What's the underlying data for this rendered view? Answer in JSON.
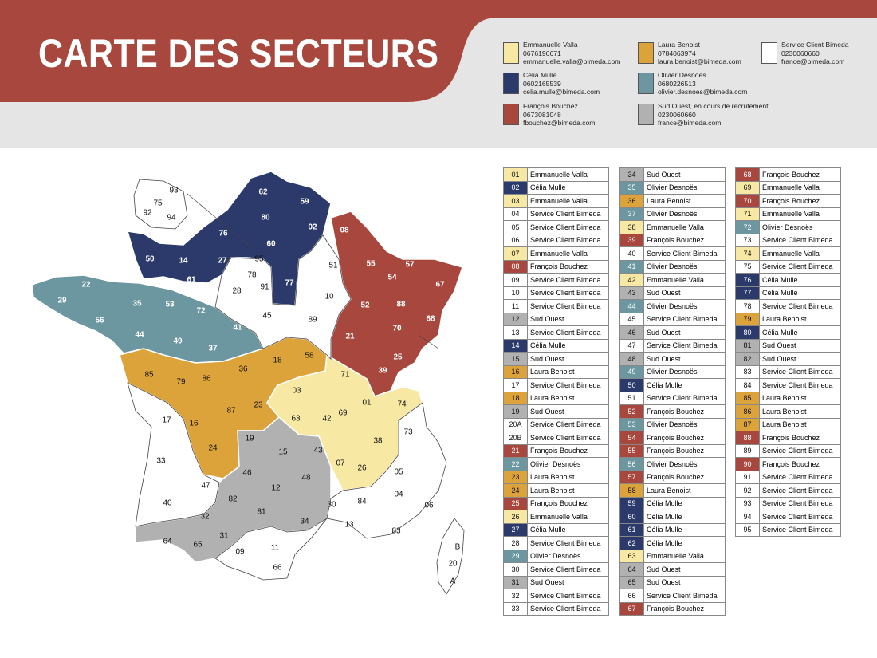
{
  "title": "CARTE DES SECTEURS",
  "colors": {
    "banner": "#a8473d",
    "header_bg": "#e5e5e5",
    "Emmanuelle Valla": "#f7e8a4",
    "Célia Mulle": "#2b3a6a",
    "François Bouchez": "#a8473d",
    "Laura Benoist": "#dca33b",
    "Olivier Desnoës": "#6c97a0",
    "Sud Ouest": "#b1b1b1",
    "Service Client Bimeda": "#ffffff"
  },
  "legend": [
    {
      "key": "Emmanuelle Valla",
      "lines": [
        "Emmanuelle Valla",
        "0676196671",
        "emmanuelle.valla@bimeda.com"
      ]
    },
    {
      "key": "Célia Mulle",
      "lines": [
        "Célia Mulle",
        "0602165539",
        "celia.mulle@bimeda.com"
      ]
    },
    {
      "key": "François Bouchez",
      "lines": [
        "François Bouchez",
        "067308104​8",
        "fbouchez@bimeda.com"
      ]
    },
    {
      "key": "Laura Benoist",
      "lines": [
        "Laura Benoist",
        "0784063974",
        "laura.benoist@bimeda.com"
      ]
    },
    {
      "key": "Olivier Desnoës",
      "lines": [
        "Olivier Desnoës",
        "0680226513",
        "olivier.desnoes@bimeda.com"
      ]
    },
    {
      "key": "Sud Ouest",
      "lines": [
        "Sud Ouest, en cours de recrutement",
        "0230060660",
        "france@bimeda.com"
      ]
    },
    {
      "key": "Service Client Bimeda",
      "lines": [
        "Service Client Bimeda",
        "0230060660",
        "france@bimeda.com"
      ]
    }
  ],
  "departments": [
    [
      "01",
      "Emmanuelle Valla"
    ],
    [
      "02",
      "Célia Mulle"
    ],
    [
      "03",
      "Emmanuelle Valla"
    ],
    [
      "04",
      "Service Client Bimeda"
    ],
    [
      "05",
      "Service Client Bimeda"
    ],
    [
      "06",
      "Service Client Bimeda"
    ],
    [
      "07",
      "Emmanuelle Valla"
    ],
    [
      "08",
      "François Bouchez"
    ],
    [
      "09",
      "Service Client Bimeda"
    ],
    [
      "10",
      "Service Client Bimeda"
    ],
    [
      "11",
      "Service Client Bimeda"
    ],
    [
      "12",
      "Sud Ouest"
    ],
    [
      "13",
      "Service Client Bimeda"
    ],
    [
      "14",
      "Célia Mulle"
    ],
    [
      "15",
      "Sud Ouest"
    ],
    [
      "16",
      "Laura Benoist"
    ],
    [
      "17",
      "Service Client Bimeda"
    ],
    [
      "18",
      "Laura Benoist"
    ],
    [
      "19",
      "Sud Ouest"
    ],
    [
      "20A",
      "Service Client Bimeda"
    ],
    [
      "20B",
      "Service Client Bimeda"
    ],
    [
      "21",
      "François Bouchez"
    ],
    [
      "22",
      "Olivier Desnoës"
    ],
    [
      "23",
      "Laura Benoist"
    ],
    [
      "24",
      "Laura Benoist"
    ],
    [
      "25",
      "François Bouchez"
    ],
    [
      "26",
      "Emmanuelle Valla"
    ],
    [
      "27",
      "Célia Mulle"
    ],
    [
      "28",
      "Service Client Bimeda"
    ],
    [
      "29",
      "Olivier Desnoës"
    ],
    [
      "30",
      "Service Client Bimeda"
    ],
    [
      "31",
      "Sud Ouest"
    ],
    [
      "32",
      "Service Client Bimeda"
    ],
    [
      "33",
      "Service Client Bimeda"
    ],
    [
      "34",
      "Sud Ouest"
    ],
    [
      "35",
      "Olivier Desnoës"
    ],
    [
      "36",
      "Laura Benoist"
    ],
    [
      "37",
      "Olivier Desnoës"
    ],
    [
      "38",
      "Emmanuelle Valla"
    ],
    [
      "39",
      "François Bouchez"
    ],
    [
      "40",
      "Service Client Bimeda"
    ],
    [
      "41",
      "Olivier Desnoës"
    ],
    [
      "42",
      "Emmanuelle Valla"
    ],
    [
      "43",
      "Sud Ouest"
    ],
    [
      "44",
      "Olivier Desnoës"
    ],
    [
      "45",
      "Service Client Bimeda"
    ],
    [
      "46",
      "Sud Ouest"
    ],
    [
      "47",
      "Service Client Bimeda"
    ],
    [
      "48",
      "Sud Ouest"
    ],
    [
      "49",
      "Olivier Desnoës"
    ],
    [
      "50",
      "Célia Mulle"
    ],
    [
      "51",
      "Service Client Bimeda"
    ],
    [
      "52",
      "François Bouchez"
    ],
    [
      "53",
      "Olivier Desnoës"
    ],
    [
      "54",
      "François Bouchez"
    ],
    [
      "55",
      "François Bouchez"
    ],
    [
      "56",
      "Olivier Desnoës"
    ],
    [
      "57",
      "François Bouchez"
    ],
    [
      "58",
      "Laura Benoist"
    ],
    [
      "59",
      "Célia Mulle"
    ],
    [
      "60",
      "Célia Mulle"
    ],
    [
      "61",
      "Célia Mulle"
    ],
    [
      "62",
      "Célia Mulle"
    ],
    [
      "63",
      "Emmanuelle Valla"
    ],
    [
      "64",
      "Sud Ouest"
    ],
    [
      "65",
      "Sud Ouest"
    ],
    [
      "66",
      "Service Client Bimeda"
    ],
    [
      "67",
      "François Bouchez"
    ],
    [
      "68",
      "François Bouchez"
    ],
    [
      "69",
      "Emmanuelle Valla"
    ],
    [
      "70",
      "François Bouchez"
    ],
    [
      "71",
      "Emmanuelle Valla"
    ],
    [
      "72",
      "Olivier Desnoës"
    ],
    [
      "73",
      "Service Client Bimeda"
    ],
    [
      "74",
      "Emmanuelle Valla"
    ],
    [
      "75",
      "Service Client Bimeda"
    ],
    [
      "76",
      "Célia Mulle"
    ],
    [
      "77",
      "Célia Mulle"
    ],
    [
      "78",
      "Service Client Bimeda"
    ],
    [
      "79",
      "Laura Benoist"
    ],
    [
      "80",
      "Célia Mulle"
    ],
    [
      "81",
      "Sud Ouest"
    ],
    [
      "82",
      "Sud Ouest"
    ],
    [
      "83",
      "Service Client Bimeda"
    ],
    [
      "84",
      "Service Client Bimeda"
    ],
    [
      "85",
      "Laura Benoist"
    ],
    [
      "86",
      "Laura Benoist"
    ],
    [
      "87",
      "Laura Benoist"
    ],
    [
      "88",
      "François Bouchez"
    ],
    [
      "89",
      "Service Client Bimeda"
    ],
    [
      "90",
      "François Bouchez"
    ],
    [
      "91",
      "Service Client Bimeda"
    ],
    [
      "92",
      "Service Client Bimeda"
    ],
    [
      "93",
      "Service Client Bimeda"
    ],
    [
      "94",
      "Service Client Bimeda"
    ],
    [
      "95",
      "Service Client Bimeda"
    ]
  ],
  "map_labels": [
    "62",
    "59",
    "80",
    "02",
    "76",
    "60",
    "08",
    "50",
    "14",
    "27",
    "61",
    "95",
    "78",
    "91",
    "77",
    "51",
    "55",
    "57",
    "54",
    "67",
    "22",
    "29",
    "35",
    "53",
    "72",
    "28",
    "10",
    "52",
    "88",
    "56",
    "44",
    "45",
    "89",
    "70",
    "68",
    "41",
    "49",
    "37",
    "21",
    "58",
    "18",
    "25",
    "90",
    "85",
    "79",
    "86",
    "36",
    "71",
    "39",
    "03",
    "01",
    "74",
    "87",
    "23",
    "16",
    "63",
    "42",
    "69",
    "17",
    "73",
    "38",
    "19",
    "15",
    "43",
    "24",
    "07",
    "26",
    "05",
    "33",
    "46",
    "48",
    "47",
    "12",
    "82",
    "04",
    "06",
    "40",
    "81",
    "30",
    "84",
    "32",
    "34",
    "13",
    "83",
    "64",
    "65",
    "31",
    "09",
    "11",
    "66",
    "93",
    "75",
    "92",
    "94",
    "B",
    "20",
    "A"
  ]
}
